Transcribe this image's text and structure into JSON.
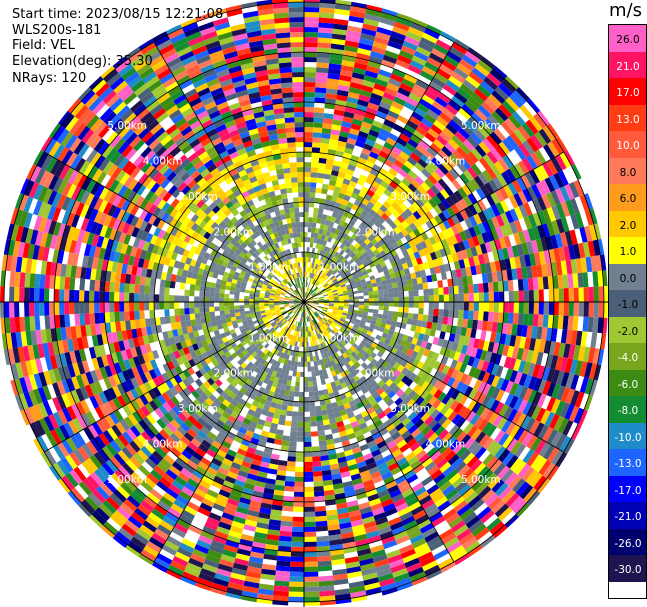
{
  "header": {
    "start_time": "Start time: 2023/08/15 12:21:08",
    "instrument": "WLS200s-181",
    "field": "Field: VEL",
    "elevation": "Elevation(deg): 35.30",
    "nrays": "NRays: 120"
  },
  "colorbar": {
    "unit": "m/s",
    "ticks": [
      "26.0",
      "21.0",
      "17.0",
      "13.0",
      "10.0",
      "8.0",
      "6.0",
      "2.0",
      "1.0",
      "0.0",
      "-1.0",
      "-2.0",
      "-4.0",
      "-6.0",
      "-8.0",
      "-10.0",
      "-13.0",
      "-17.0",
      "-21.0",
      "-26.0",
      "-30.0"
    ],
    "colors": [
      "#ff60c8",
      "#ff1464",
      "#ff0000",
      "#ff3c14",
      "#ff5a3c",
      "#ff7a5a",
      "#ff9c1e",
      "#ffc800",
      "#ffff00",
      "#708090",
      "#4a6078",
      "#a0c832",
      "#78a51e",
      "#3c8c14",
      "#148c32",
      "#1e8cc8",
      "#1e64ff",
      "#0000ff",
      "#0000b4",
      "#00006e",
      "#1e1450"
    ]
  },
  "chart_data": {
    "type": "heatmap",
    "projection": "polar-ppi",
    "field": "VEL",
    "units": "m/s",
    "n_rays": 120,
    "range_ring_labels": [
      "1.00km",
      "2.00km",
      "3.00km",
      "4.00km",
      "5.00km"
    ],
    "zones": [
      {
        "max_range_km": 0.6,
        "content": "mixed green/yellow/orange near center"
      },
      {
        "max_range_km": 1.0,
        "content": "yellow (+1 to +2 m/s) ring with grey"
      },
      {
        "max_range_km": 2.3,
        "content": "grey (0 m/s) with green (-1 to -2 m/s) patches"
      },
      {
        "max_range_km": 3.2,
        "content": "yellow arc to the north, grey/green elsewhere"
      },
      {
        "max_range_km": 6.0,
        "content": "noisy multicolour values across full scale"
      }
    ],
    "value_range": [
      -30,
      26
    ]
  }
}
